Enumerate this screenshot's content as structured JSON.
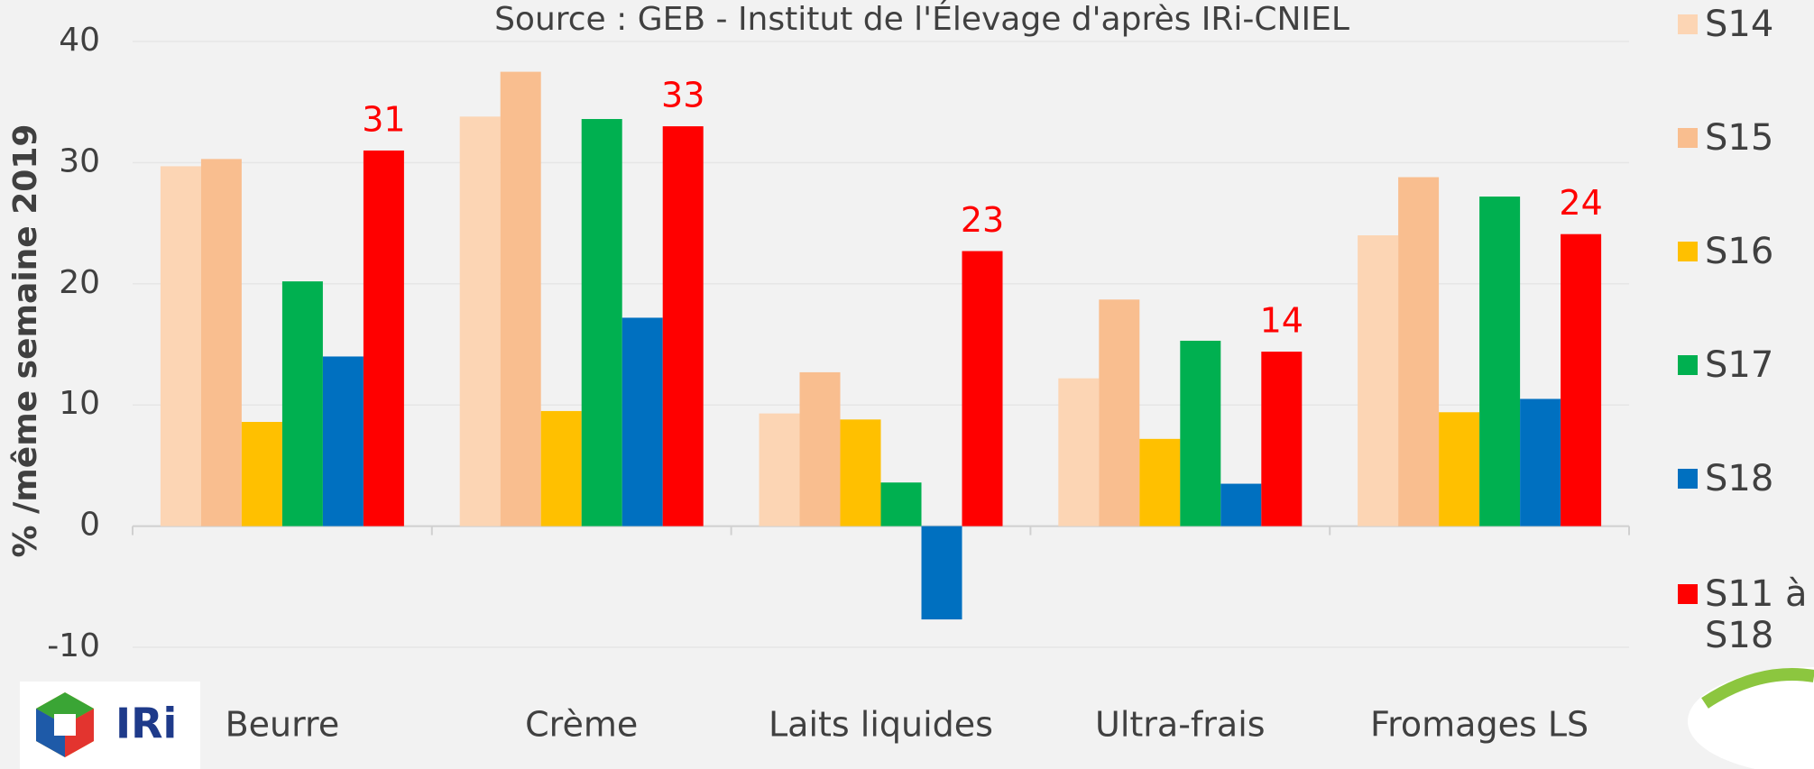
{
  "chart_data": {
    "type": "bar",
    "subtitle": "Source : GEB - Institut de l'Élevage d'après IRi-CNIEL",
    "y_label": "% /même semaine 2019",
    "categories": [
      "Beurre",
      "Crème",
      "Laits liquides",
      "Ultra-frais",
      "Fromages LS"
    ],
    "series": [
      {
        "name": "S14",
        "color": "#fcd5b4",
        "values": [
          29.7,
          33.8,
          9.3,
          12.2,
          24.0
        ]
      },
      {
        "name": "S15",
        "color": "#f9be8f",
        "values": [
          30.3,
          37.5,
          12.7,
          18.7,
          28.8
        ]
      },
      {
        "name": "S16",
        "color": "#ffc000",
        "values": [
          8.6,
          9.5,
          8.8,
          7.2,
          9.4
        ]
      },
      {
        "name": "S17",
        "color": "#00b050",
        "values": [
          20.2,
          33.6,
          3.6,
          15.3,
          27.2
        ]
      },
      {
        "name": "S18",
        "color": "#0070c0",
        "values": [
          14.0,
          17.2,
          -7.7,
          3.5,
          10.5
        ]
      },
      {
        "name": "S11 à S18",
        "color": "#ff0000",
        "values": [
          31.0,
          33.0,
          22.7,
          14.4,
          24.1
        ],
        "value_labels": [
          "31",
          "33",
          "23",
          "14",
          "24"
        ]
      }
    ],
    "ylim": [
      -10,
      40
    ],
    "yticks": [
      -10,
      0,
      10,
      20,
      30,
      40
    ],
    "grid": true,
    "legend": "right",
    "logo_text": "IRi"
  }
}
